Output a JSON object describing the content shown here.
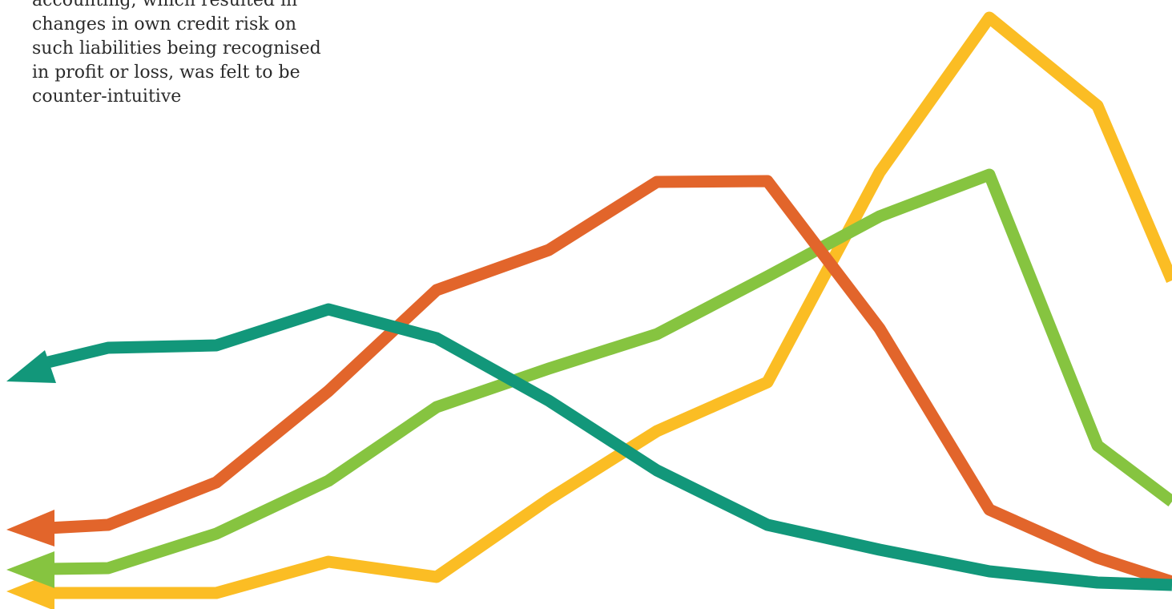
{
  "quote": {
    "lines": [
      "accounting, which resulted in",
      "changes in own credit risk on",
      "such liabilities being recognised",
      "in profit or loss, was felt to be",
      "counter-intuitive"
    ]
  },
  "illustration": {
    "description_colors": {
      "teal": "#12977a",
      "orange": "#e2652b",
      "green": "#86c440",
      "yellow": "#fbbd24"
    },
    "icons": [
      "arrow-left-icon"
    ]
  }
}
